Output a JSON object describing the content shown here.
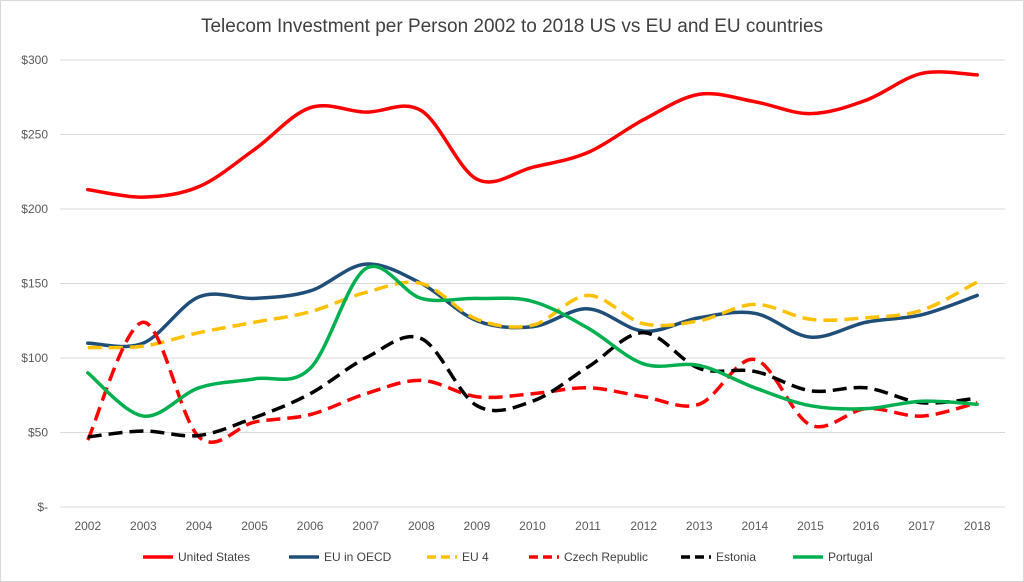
{
  "chart_data": {
    "type": "line",
    "title": "Telecom Investment per Person 2002 to 2018 US vs EU and EU countries",
    "xlabel": "",
    "ylabel": "",
    "categories": [
      "2002",
      "2003",
      "2004",
      "2005",
      "2006",
      "2007",
      "2008",
      "2009",
      "2010",
      "2011",
      "2012",
      "2013",
      "2014",
      "2015",
      "2016",
      "2017",
      "2018"
    ],
    "ylim": [
      0,
      300
    ],
    "yticks": [
      0,
      50,
      100,
      150,
      200,
      250,
      300
    ],
    "ytick_labels": [
      "$-",
      "$50",
      "$100",
      "$150",
      "$200",
      "$250",
      "$300"
    ],
    "grid": true,
    "legend_position": "bottom",
    "series": [
      {
        "name": "United States",
        "color": "#ff0000",
        "dash": "solid",
        "values": [
          213,
          208,
          215,
          240,
          268,
          265,
          266,
          220,
          228,
          238,
          260,
          277,
          272,
          264,
          273,
          291,
          290
        ]
      },
      {
        "name": "EU in OECD",
        "color": "#1f4e79",
        "dash": "solid",
        "values": [
          110,
          110,
          141,
          140,
          145,
          163,
          150,
          125,
          121,
          133,
          118,
          127,
          130,
          114,
          124,
          129,
          142
        ]
      },
      {
        "name": "EU 4",
        "color": "#ffc000",
        "dash": "dashed",
        "values": [
          107,
          108,
          117,
          124,
          131,
          144,
          150,
          126,
          122,
          142,
          123,
          125,
          136,
          126,
          127,
          132,
          151
        ]
      },
      {
        "name": "Czech Republic",
        "color": "#ff0000",
        "dash": "dashed",
        "values": [
          45,
          124,
          47,
          57,
          62,
          76,
          85,
          74,
          76,
          80,
          74,
          69,
          99,
          55,
          66,
          61,
          70
        ]
      },
      {
        "name": "Estonia",
        "color": "#000000",
        "dash": "dashed",
        "values": [
          47,
          51,
          48,
          60,
          76,
          100,
          113,
          68,
          71,
          94,
          117,
          93,
          91,
          78,
          80,
          70,
          73
        ]
      },
      {
        "name": "Portugal",
        "color": "#00b050",
        "dash": "solid",
        "values": [
          90,
          61,
          80,
          86,
          93,
          160,
          140,
          140,
          138,
          120,
          96,
          95,
          80,
          68,
          66,
          71,
          69
        ]
      }
    ]
  }
}
